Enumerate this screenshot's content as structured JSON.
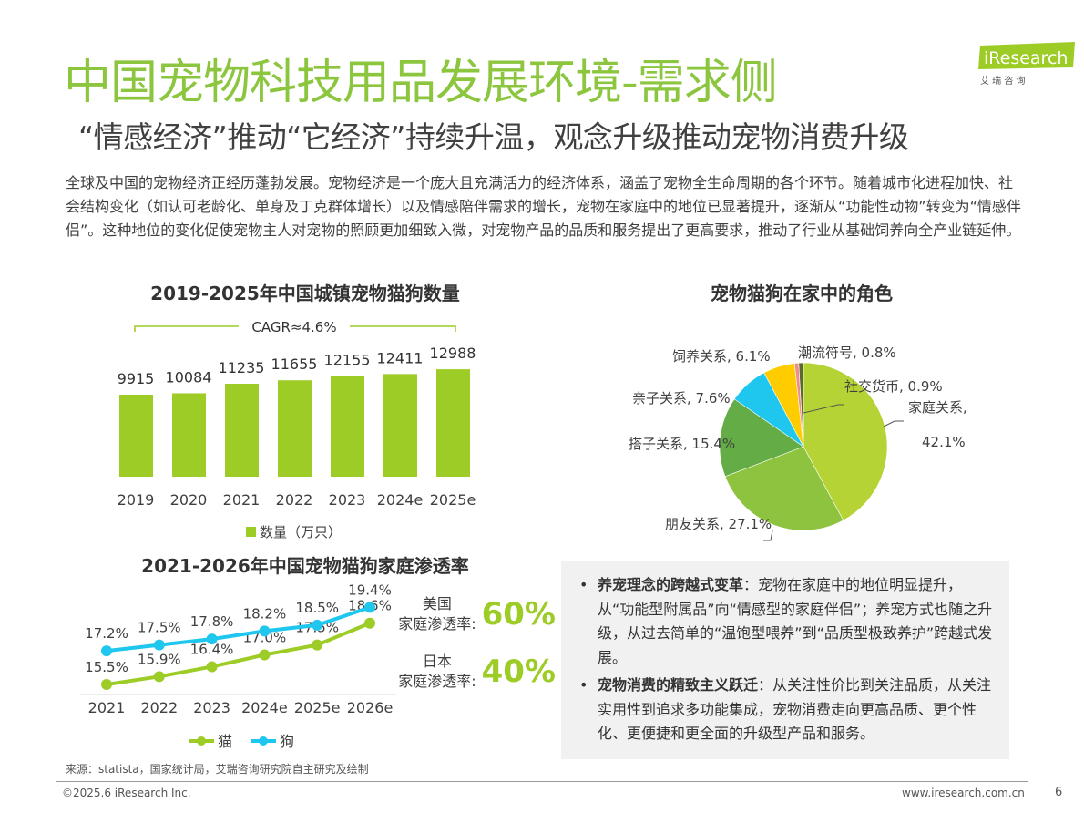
{
  "header": {
    "title": "中国宠物科技用品发展环境-需求侧",
    "subtitle": "“情感经济”推动“它经济”持续升温，观念升级推动宠物消费升级",
    "logo_text": "iResearch",
    "logo_sub": "艾 瑞 咨 询",
    "brand_color": "#8cc63f"
  },
  "intro": "全球及中国的宠物经济正经历蓬勃发展。宠物经济是一个庞大且充满活力的经济体系，涵盖了宠物全生命周期的各个环节。随着城市化进程加快、社会结构变化（如认可老龄化、单身及丁克群体增长）以及情感陪伴需求的增长，宠物在家庭中的地位已显著提升，逐渐从“功能性动物”转变为“情感伴侣”。这种地位的变化促使宠物主人对宠物的照顾更加细致入微，对宠物产品的品质和服务提出了更高要求，推动了行业从基础饲养向全产业链延伸。",
  "chart_data": [
    {
      "type": "bar",
      "title": "2019-2025年中国城镇宠物猫狗数量",
      "categories": [
        "2019",
        "2020",
        "2021",
        "2022",
        "2023",
        "2024e",
        "2025e"
      ],
      "series": [
        {
          "name": "数量（万只）",
          "values": [
            9915,
            10084,
            11235,
            11655,
            12155,
            12411,
            12988
          ],
          "color": "#9ccc25"
        }
      ],
      "annotation": "CAGR≈4.6%",
      "ylim": [
        0,
        14000
      ],
      "grid": false,
      "legend": "bottom"
    },
    {
      "type": "pie",
      "title": "宠物猫狗在家中的角色",
      "slices": [
        {
          "label": "家庭关系",
          "value": 42.1,
          "text": "家庭关系,",
          "pct": "42.1%",
          "color": "#b5d334"
        },
        {
          "label": "朋友关系",
          "value": 27.1,
          "text": "朋友关系, 27.1%",
          "color": "#8dc33f"
        },
        {
          "label": "搭子关系",
          "value": 15.4,
          "text": "搭子关系, 15.4%",
          "color": "#63ac46"
        },
        {
          "label": "亲子关系",
          "value": 7.6,
          "text": "亲子关系, 7.6%",
          "color": "#1fc7ef"
        },
        {
          "label": "饲养关系",
          "value": 6.1,
          "text": "饲养关系, 6.1%",
          "color": "#ffcc00"
        },
        {
          "label": "潮流符号",
          "value": 0.8,
          "text": "潮流符号, 0.8%",
          "color": "#f08c8c"
        },
        {
          "label": "社交货币",
          "value": 0.9,
          "text": "社交货币, 0.9%",
          "color": "#5b6a2a"
        }
      ]
    },
    {
      "type": "line",
      "title": "2021-2026年中国宠物猫狗家庭渗透率",
      "categories": [
        "2021",
        "2022",
        "2023",
        "2024e",
        "2025e",
        "2026e"
      ],
      "series": [
        {
          "name": "猫",
          "values": [
            15.5,
            15.9,
            16.4,
            17.0,
            17.5,
            18.6
          ],
          "color": "#9ccc25"
        },
        {
          "name": "狗",
          "values": [
            17.2,
            17.5,
            17.8,
            18.2,
            18.5,
            19.4
          ],
          "color": "#1fc7ef"
        }
      ],
      "unit": "%",
      "legend": "bottom"
    }
  ],
  "kpis": [
    {
      "label1": "美国",
      "label2": "家庭渗透率:",
      "value": "60%"
    },
    {
      "label1": "日本",
      "label2": "家庭渗透率:",
      "value": "40%"
    }
  ],
  "bullets": [
    {
      "head": "养宠理念的跨越式变革",
      "body": "：宠物在家庭中的地位明显提升，从“功能型附属品”向“情感型的家庭伴侣”；养宠方式也随之升级，从过去简单的“温饱型喂养”到“品质型极致养护”跨越式发展。"
    },
    {
      "head": "宠物消费的精致主义跃迁",
      "body": "：从关注性价比到关注品质，从关注实用性到追求多功能集成，宠物消费走向更高品质、更个性化、更便捷和更全面的升级型产品和服务。"
    }
  ],
  "footer": {
    "source": "来源：statista，国家统计局，艾瑞咨询研究院自主研究及绘制",
    "copyright": "©2025.6 iResearch Inc.",
    "url": "www.iresearch.com.cn",
    "page": "6"
  }
}
